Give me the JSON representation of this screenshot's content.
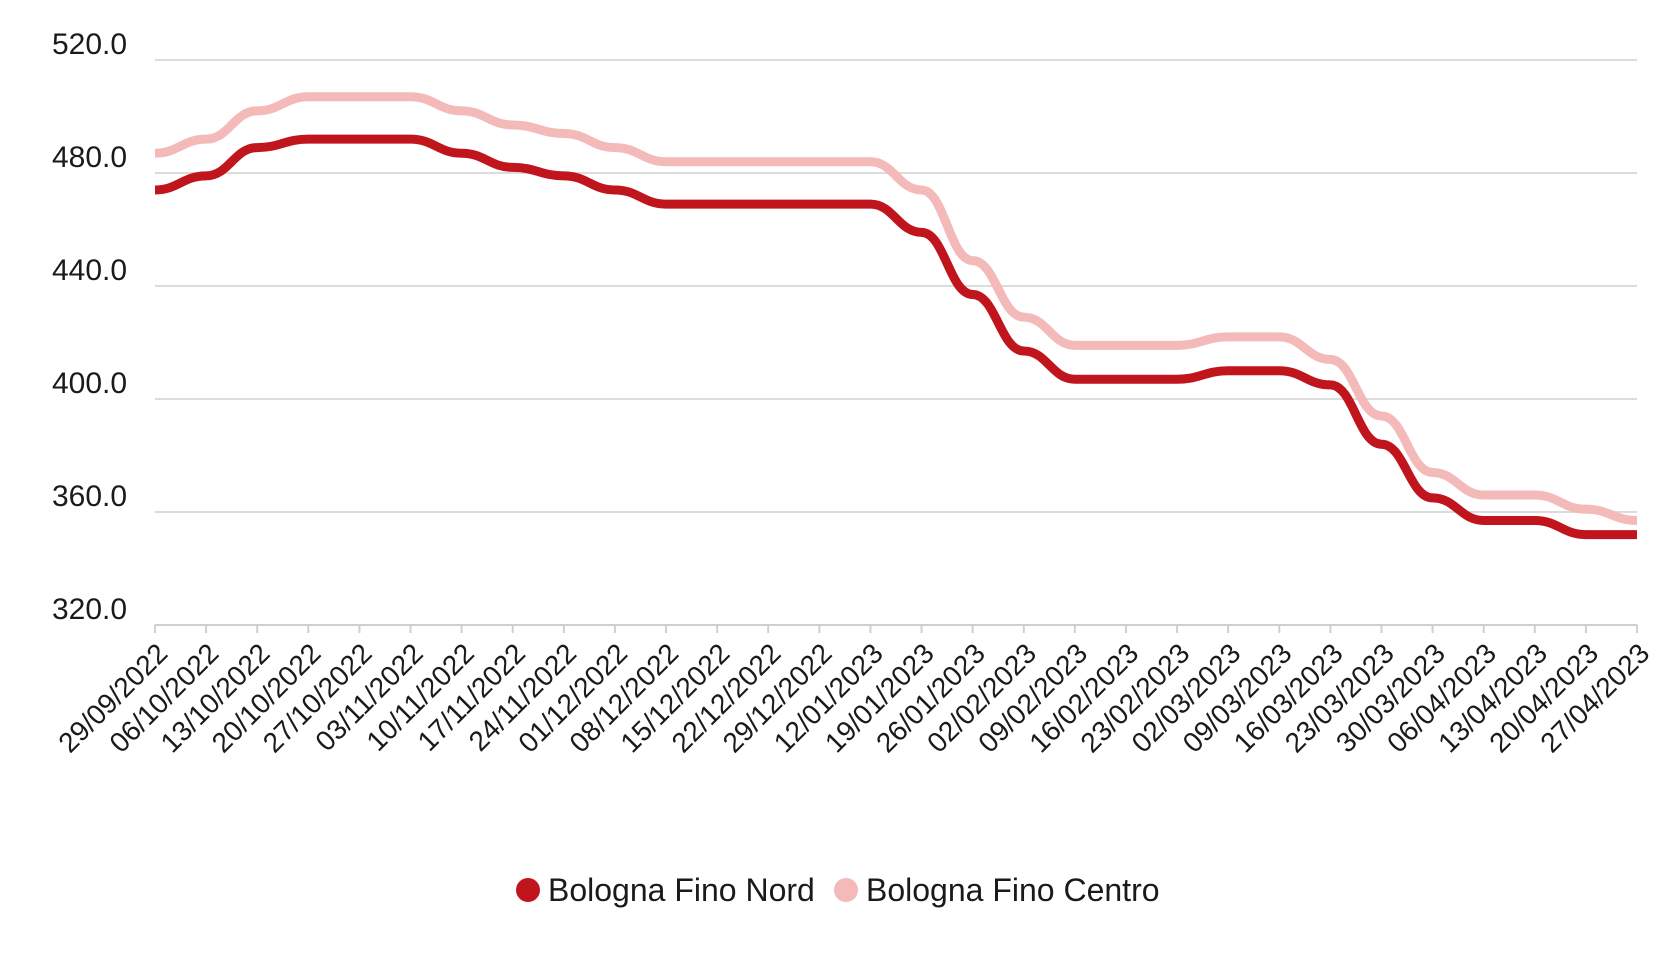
{
  "chart_data": {
    "type": "line",
    "title": "",
    "xlabel": "",
    "ylabel": "",
    "ylim": [
      320,
      520
    ],
    "yticks": [
      "320.0",
      "360.0",
      "400.0",
      "440.0",
      "480.0",
      "520.0"
    ],
    "grid": true,
    "legend_position": "bottom",
    "categories": [
      "29/09/2022",
      "06/10/2022",
      "13/10/2022",
      "20/10/2022",
      "27/10/2022",
      "03/11/2022",
      "10/11/2022",
      "17/11/2022",
      "24/11/2022",
      "01/12/2022",
      "08/12/2022",
      "15/12/2022",
      "22/12/2022",
      "29/12/2022",
      "12/01/2023",
      "19/01/2023",
      "26/01/2023",
      "02/02/2023",
      "09/02/2023",
      "16/02/2023",
      "23/02/2023",
      "02/03/2023",
      "09/03/2023",
      "16/03/2023",
      "23/03/2023",
      "30/03/2023",
      "06/04/2023",
      "13/04/2023",
      "20/04/2023",
      "27/04/2023"
    ],
    "series": [
      {
        "name": "Bologna Fino Nord",
        "color": "#c0151c",
        "values": [
          474,
          479,
          489,
          492,
          492,
          492,
          487,
          482,
          479,
          474,
          469,
          469,
          469,
          469,
          469,
          459,
          437,
          417,
          407,
          407,
          407,
          410,
          410,
          405,
          384,
          365,
          357,
          357,
          352,
          352
        ]
      },
      {
        "name": "Bologna Fino Centro",
        "color": "#f4b9b9",
        "values": [
          487,
          492,
          502,
          507,
          507,
          507,
          502,
          497,
          494,
          489,
          484,
          484,
          484,
          484,
          484,
          474,
          449,
          429,
          419,
          419,
          419,
          422,
          422,
          414,
          394,
          374,
          366,
          366,
          361,
          357
        ]
      }
    ]
  }
}
